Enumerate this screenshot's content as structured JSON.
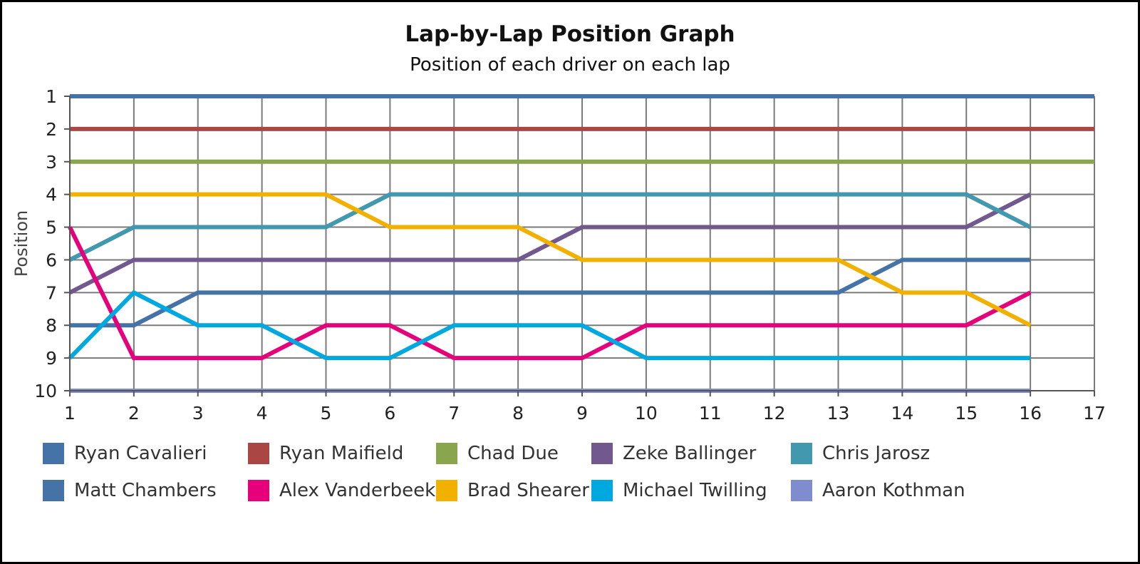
{
  "chart_data": {
    "type": "line",
    "title": "Lap-by-Lap Position Graph",
    "subtitle": "Position of each driver on each lap",
    "xlabel": "",
    "ylabel": "Position",
    "xlim": [
      1,
      17
    ],
    "ylim": [
      1,
      10
    ],
    "y_inverted": true,
    "x_ticks": [
      "1",
      "2",
      "3",
      "4",
      "5",
      "6",
      "7",
      "8",
      "9",
      "10",
      "11",
      "12",
      "13",
      "14",
      "15",
      "16",
      "17"
    ],
    "y_ticks": [
      "1",
      "2",
      "3",
      "4",
      "5",
      "6",
      "7",
      "8",
      "9",
      "10"
    ],
    "grid": true,
    "legend_position": "bottom",
    "x": [
      1,
      2,
      3,
      4,
      5,
      6,
      7,
      8,
      9,
      10,
      11,
      12,
      13,
      14,
      15,
      16
    ],
    "series": [
      {
        "name": "Ryan Cavalieri",
        "color": "#4572a7",
        "values": [
          1,
          1,
          1,
          1,
          1,
          1,
          1,
          1,
          1,
          1,
          1,
          1,
          1,
          1,
          1,
          1
        ],
        "extends_to": 17
      },
      {
        "name": "Ryan Maifield",
        "color": "#aa4643",
        "values": [
          2,
          2,
          2,
          2,
          2,
          2,
          2,
          2,
          2,
          2,
          2,
          2,
          2,
          2,
          2,
          2
        ],
        "extends_to": 17
      },
      {
        "name": "Chad Due",
        "color": "#89a54e",
        "values": [
          3,
          3,
          3,
          3,
          3,
          3,
          3,
          3,
          3,
          3,
          3,
          3,
          3,
          3,
          3,
          3
        ],
        "extends_to": 17
      },
      {
        "name": "Zeke Ballinger",
        "color": "#71588f",
        "values": [
          7,
          6,
          6,
          6,
          6,
          6,
          6,
          6,
          5,
          5,
          5,
          5,
          5,
          5,
          5,
          4
        ]
      },
      {
        "name": "Chris Jarosz",
        "color": "#4198af",
        "values": [
          6,
          5,
          5,
          5,
          5,
          4,
          4,
          4,
          4,
          4,
          4,
          4,
          4,
          4,
          4,
          5
        ]
      },
      {
        "name": "Matt Chambers",
        "color": "#4572a7",
        "values": [
          8,
          8,
          7,
          7,
          7,
          7,
          7,
          7,
          7,
          7,
          7,
          7,
          7,
          6,
          6,
          6
        ]
      },
      {
        "name": "Alex Vanderbeek",
        "color": "#e6007a",
        "values": [
          5,
          9,
          9,
          9,
          8,
          8,
          9,
          9,
          9,
          8,
          8,
          8,
          8,
          8,
          8,
          7
        ]
      },
      {
        "name": "Brad Shearer",
        "color": "#f2b100",
        "values": [
          4,
          4,
          4,
          4,
          4,
          5,
          5,
          5,
          6,
          6,
          6,
          6,
          6,
          7,
          7,
          8
        ]
      },
      {
        "name": "Michael Twilling",
        "color": "#00a8e0",
        "values": [
          9,
          7,
          8,
          8,
          9,
          9,
          8,
          8,
          8,
          9,
          9,
          9,
          9,
          9,
          9,
          9
        ]
      },
      {
        "name": "Aaron Kothman",
        "color": "#7f8ccf",
        "values": [
          10,
          10,
          10,
          10,
          10,
          10,
          10,
          10,
          10,
          10,
          10,
          10,
          10,
          10,
          10,
          10
        ]
      }
    ]
  }
}
